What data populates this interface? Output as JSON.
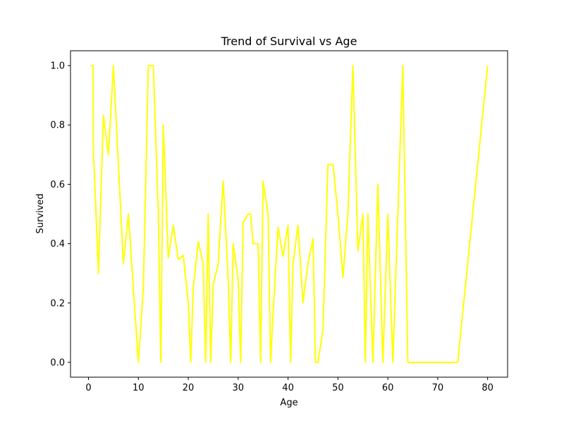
{
  "chart_data": {
    "type": "line",
    "title": "Trend of Survival vs Age",
    "xlabel": "Age",
    "ylabel": "Survived",
    "xlim": [
      -3.6,
      84
    ],
    "ylim": [
      -0.05,
      1.05
    ],
    "xticks": [
      0,
      10,
      20,
      30,
      40,
      50,
      60,
      70,
      80
    ],
    "yticks": [
      0.0,
      0.2,
      0.4,
      0.6,
      0.8,
      1.0
    ],
    "ytick_labels": [
      "0.0",
      "0.2",
      "0.4",
      "0.6",
      "0.8",
      "1.0"
    ],
    "grid": false,
    "series": [
      {
        "color": "#ffff00",
        "x": [
          0.42,
          0.67,
          0.75,
          0.83,
          0.92,
          1,
          2,
          3,
          4,
          5,
          6,
          7,
          8,
          9,
          10,
          11,
          12,
          13,
          14,
          14.5,
          15,
          16,
          17,
          18,
          19,
          20,
          20.5,
          21,
          22,
          23,
          23.5,
          24,
          24.5,
          25,
          26,
          27,
          28,
          28.5,
          29,
          30,
          30.5,
          31,
          32,
          32.5,
          33,
          34,
          34.5,
          35,
          36,
          36.5,
          37,
          38,
          39,
          40,
          40.5,
          41,
          42,
          43,
          44,
          45,
          45.5,
          46,
          47,
          48,
          49,
          50,
          51,
          52,
          53,
          54,
          55,
          55.5,
          56,
          57,
          58,
          59,
          60,
          61,
          62,
          63,
          64,
          65,
          66,
          70,
          70.5,
          71,
          74,
          80
        ],
        "y": [
          1.0,
          1.0,
          1.0,
          1.0,
          1.0,
          0.714,
          0.3,
          0.833,
          0.7,
          1.0,
          0.667,
          0.333,
          0.5,
          0.25,
          0.0,
          0.25,
          1.0,
          1.0,
          0.5,
          0.0,
          0.8,
          0.353,
          0.462,
          0.346,
          0.36,
          0.2,
          0.0,
          0.25,
          0.407,
          0.333,
          0.0,
          0.5,
          0.0,
          0.261,
          0.333,
          0.611,
          0.28,
          0.0,
          0.4,
          0.28,
          0.0,
          0.471,
          0.5,
          0.5,
          0.4,
          0.4,
          0.0,
          0.611,
          0.5,
          0.0,
          0.167,
          0.455,
          0.357,
          0.462,
          0.0,
          0.333,
          0.462,
          0.2,
          0.333,
          0.417,
          0.0,
          0.0,
          0.111,
          0.667,
          0.667,
          0.5,
          0.286,
          0.5,
          1.0,
          0.375,
          0.5,
          0.0,
          0.5,
          0.0,
          0.6,
          0.0,
          0.5,
          0.0,
          0.5,
          1.0,
          0.0,
          0.0,
          0.0,
          0.0,
          0.0,
          0.0,
          0.0,
          1.0
        ]
      }
    ]
  }
}
